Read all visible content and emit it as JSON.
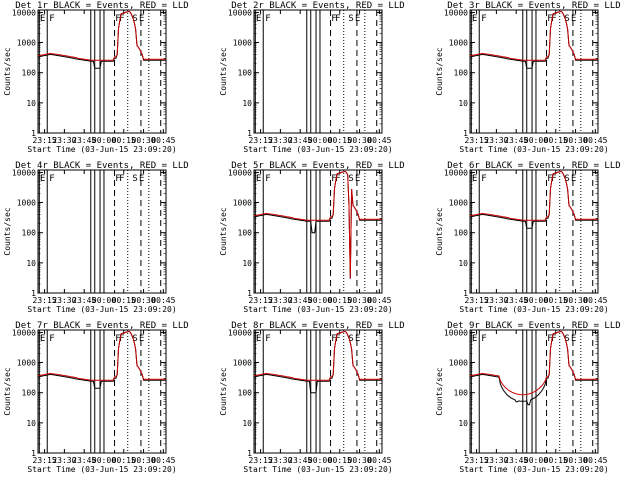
{
  "figure": {
    "background": "#ffffff",
    "event_color": "#000000",
    "lld_color": "#cc0000",
    "xlabel": "Start Time (03-Jun-15 23:09:20)",
    "ylabel": "Counts/sec"
  },
  "chart_data": [
    {
      "type": "line",
      "title": "Det 1r BLACK = Events, RED = LLD",
      "profile": "normal",
      "ylim": [
        1,
        12000
      ],
      "yscale": "log",
      "xticks": [
        "23:15",
        "23:30",
        "23:45",
        "00:00",
        "00:15",
        "00:30",
        "00:45"
      ],
      "yticks": [
        "1",
        "10",
        "100",
        "1000",
        "10000"
      ],
      "letters": [
        {
          "t": "E",
          "x": "23:10"
        },
        {
          "t": "F",
          "x": "23:17"
        },
        {
          "t": "F",
          "x": "00:07"
        },
        {
          "t": "F",
          "x": "00:10"
        },
        {
          "t": "S",
          "x": "00:20"
        },
        {
          "t": "E",
          "x": "00:25"
        }
      ],
      "series": [
        {
          "name": "Events"
        },
        {
          "name": "LLD"
        }
      ]
    },
    {
      "type": "line",
      "title": "Det 2r BLACK = Events, RED = LLD",
      "profile": "none",
      "ylim": [
        1,
        12000
      ],
      "yscale": "log",
      "xticks": [
        "23:15",
        "23:30",
        "23:45",
        "00:00",
        "00:15",
        "00:30",
        "00:45"
      ],
      "yticks": [
        "1",
        "10",
        "100",
        "1000",
        "10000"
      ],
      "letters": [
        {
          "t": "E",
          "x": "23:10"
        },
        {
          "t": "F",
          "x": "23:17"
        },
        {
          "t": "F",
          "x": "00:07"
        },
        {
          "t": "F",
          "x": "00:10"
        },
        {
          "t": "S",
          "x": "00:20"
        },
        {
          "t": "E",
          "x": "00:25"
        }
      ],
      "series": []
    },
    {
      "type": "line",
      "title": "Det 3r BLACK = Events, RED = LLD",
      "profile": "normal",
      "ylim": [
        1,
        12000
      ],
      "yscale": "log",
      "xticks": [
        "23:15",
        "23:30",
        "23:45",
        "00:00",
        "00:15",
        "00:30",
        "00:45"
      ],
      "yticks": [
        "1",
        "10",
        "100",
        "1000",
        "10000"
      ],
      "letters": [
        {
          "t": "E",
          "x": "23:10"
        },
        {
          "t": "F",
          "x": "23:17"
        },
        {
          "t": "F",
          "x": "00:07"
        },
        {
          "t": "F",
          "x": "00:10"
        },
        {
          "t": "S",
          "x": "00:20"
        },
        {
          "t": "E",
          "x": "00:25"
        }
      ],
      "series": [
        {
          "name": "Events"
        },
        {
          "name": "LLD"
        }
      ]
    },
    {
      "type": "line",
      "title": "Det 4r BLACK = Events, RED = LLD",
      "profile": "none",
      "ylim": [
        1,
        12000
      ],
      "yscale": "log",
      "xticks": [
        "23:15",
        "23:30",
        "23:45",
        "00:00",
        "00:15",
        "00:30",
        "00:45"
      ],
      "yticks": [
        "1",
        "10",
        "100",
        "1000",
        "10000"
      ],
      "letters": [
        {
          "t": "E",
          "x": "23:10"
        },
        {
          "t": "F",
          "x": "23:17"
        },
        {
          "t": "F",
          "x": "00:07"
        },
        {
          "t": "F",
          "x": "00:10"
        },
        {
          "t": "S",
          "x": "00:20"
        },
        {
          "t": "E",
          "x": "00:25"
        }
      ],
      "series": []
    },
    {
      "type": "line",
      "title": "Det 5r BLACK = Events, RED = LLD",
      "profile": "spiky",
      "ylim": [
        1,
        12000
      ],
      "yscale": "log",
      "xticks": [
        "23:15",
        "23:30",
        "23:45",
        "00:00",
        "00:15",
        "00:30",
        "00:45"
      ],
      "yticks": [
        "1",
        "10",
        "100",
        "1000",
        "10000"
      ],
      "letters": [
        {
          "t": "E",
          "x": "23:10"
        },
        {
          "t": "F",
          "x": "23:17"
        },
        {
          "t": "F",
          "x": "00:07"
        },
        {
          "t": "F",
          "x": "00:10"
        },
        {
          "t": "S",
          "x": "00:20"
        },
        {
          "t": "E",
          "x": "00:25"
        }
      ],
      "series": [
        {
          "name": "Events"
        },
        {
          "name": "LLD"
        }
      ]
    },
    {
      "type": "line",
      "title": "Det 6r BLACK = Events, RED = LLD",
      "profile": "normal",
      "ylim": [
        1,
        12000
      ],
      "yscale": "log",
      "xticks": [
        "23:15",
        "23:30",
        "23:45",
        "00:00",
        "00:15",
        "00:30",
        "00:45"
      ],
      "yticks": [
        "1",
        "10",
        "100",
        "1000",
        "10000"
      ],
      "letters": [
        {
          "t": "E",
          "x": "23:10"
        },
        {
          "t": "F",
          "x": "23:17"
        },
        {
          "t": "F",
          "x": "00:07"
        },
        {
          "t": "F",
          "x": "00:10"
        },
        {
          "t": "S",
          "x": "00:20"
        },
        {
          "t": "E",
          "x": "00:25"
        }
      ],
      "series": [
        {
          "name": "Events"
        },
        {
          "name": "LLD"
        }
      ]
    },
    {
      "type": "line",
      "title": "Det 7r BLACK = Events, RED = LLD",
      "profile": "normal",
      "ylim": [
        1,
        12000
      ],
      "yscale": "log",
      "xticks": [
        "23:15",
        "23:30",
        "23:45",
        "00:00",
        "00:15",
        "00:30",
        "00:45"
      ],
      "yticks": [
        "1",
        "10",
        "100",
        "1000",
        "10000"
      ],
      "letters": [
        {
          "t": "E",
          "x": "23:10"
        },
        {
          "t": "F",
          "x": "23:17"
        },
        {
          "t": "F",
          "x": "00:07"
        },
        {
          "t": "F",
          "x": "00:10"
        },
        {
          "t": "S",
          "x": "00:20"
        },
        {
          "t": "E",
          "x": "00:25"
        }
      ],
      "series": [
        {
          "name": "Events"
        },
        {
          "name": "LLD"
        }
      ]
    },
    {
      "type": "line",
      "title": "Det 8r BLACK = Events, RED = LLD",
      "profile": "normal8",
      "ylim": [
        1,
        12000
      ],
      "yscale": "log",
      "xticks": [
        "23:15",
        "23:30",
        "23:45",
        "00:00",
        "00:15",
        "00:30",
        "00:45"
      ],
      "yticks": [
        "1",
        "10",
        "100",
        "1000",
        "10000"
      ],
      "letters": [
        {
          "t": "E",
          "x": "23:10"
        },
        {
          "t": "F",
          "x": "23:17"
        },
        {
          "t": "F",
          "x": "00:07"
        },
        {
          "t": "F",
          "x": "00:10"
        },
        {
          "t": "S",
          "x": "00:20"
        },
        {
          "t": "E",
          "x": "00:25"
        }
      ],
      "series": [
        {
          "name": "Events"
        },
        {
          "name": "LLD"
        }
      ]
    },
    {
      "type": "line",
      "title": "Det 9r BLACK = Events, RED = LLD",
      "profile": "dip9",
      "ylim": [
        1,
        12000
      ],
      "yscale": "log",
      "xticks": [
        "23:15",
        "23:30",
        "23:45",
        "00:00",
        "00:15",
        "00:30",
        "00:45"
      ],
      "yticks": [
        "1",
        "10",
        "100",
        "1000",
        "10000"
      ],
      "letters": [
        {
          "t": "E",
          "x": "23:10"
        },
        {
          "t": "F",
          "x": "23:17"
        },
        {
          "t": "F",
          "x": "00:07"
        },
        {
          "t": "F",
          "x": "00:10"
        },
        {
          "t": "S",
          "x": "00:20"
        },
        {
          "t": "E",
          "x": "00:25"
        }
      ],
      "series": [
        {
          "name": "Events"
        },
        {
          "name": "LLD"
        }
      ]
    }
  ]
}
